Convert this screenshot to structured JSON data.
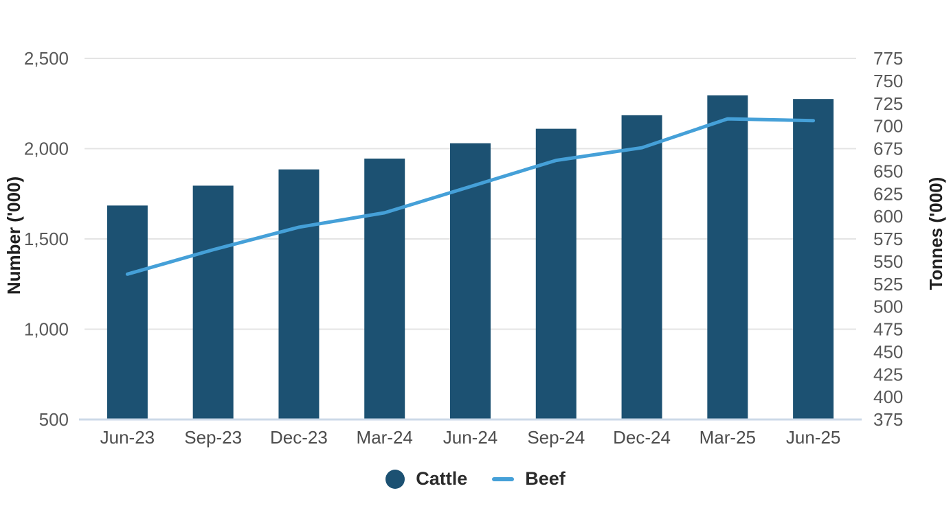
{
  "chart_data": {
    "type": "combo",
    "categories": [
      "Jun-23",
      "Sep-23",
      "Dec-23",
      "Mar-24",
      "Jun-24",
      "Sep-24",
      "Dec-24",
      "Mar-25",
      "Jun-25"
    ],
    "series": [
      {
        "name": "Cattle",
        "type": "bar",
        "axis": "left",
        "color": "#1c5172",
        "values": [
          1685,
          1795,
          1885,
          1945,
          2030,
          2110,
          2185,
          2295,
          2275
        ]
      },
      {
        "name": "Beef",
        "type": "line",
        "axis": "right",
        "color": "#45a0d8",
        "values": [
          536,
          563,
          588,
          604,
          633,
          662,
          676,
          708,
          706
        ]
      }
    ],
    "left_axis": {
      "title": "Number ('000)",
      "min": 500,
      "max": 2500,
      "tick_step": 500,
      "tick_labels": [
        "2,500",
        "2,000",
        "1,500",
        "1,000",
        "500"
      ]
    },
    "right_axis": {
      "title": "Tonnes ('000)",
      "min": 375,
      "max": 775,
      "tick_step": 25,
      "tick_labels": [
        "775",
        "750",
        "725",
        "700",
        "675",
        "650",
        "625",
        "600",
        "575",
        "550",
        "525",
        "500",
        "475",
        "450",
        "425",
        "400",
        "375"
      ]
    },
    "grid": "horizontal",
    "legend_position": "bottom",
    "styles": {
      "gridline_color": "#e4e4e4",
      "baseline_color": "#ccd9e8",
      "tick_label_color": "#595959",
      "x_label_color": "#4d4d4d"
    }
  }
}
